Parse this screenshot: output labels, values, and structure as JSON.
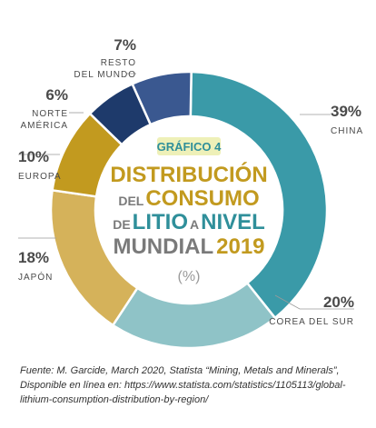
{
  "chart_data": {
    "type": "pie",
    "donut": true,
    "title_tag": "GRÁFICO 4",
    "title_lines": [
      [
        {
          "text": "DISTRIBUCIÓN",
          "tone": "gold"
        }
      ],
      [
        {
          "text": "DEL",
          "tone": "grey",
          "small": true
        },
        {
          "text": "CONSUMO",
          "tone": "gold"
        }
      ],
      [
        {
          "text": "DE",
          "tone": "grey",
          "small": true
        },
        {
          "text": "LITIO",
          "tone": "teal"
        },
        {
          "text": "A",
          "tone": "grey",
          "small": true
        },
        {
          "text": "NIVEL",
          "tone": "teal"
        }
      ],
      [
        {
          "text": "MUNDIAL",
          "tone": "grey"
        },
        {
          "text": "2019",
          "tone": "gold"
        }
      ]
    ],
    "unit": "(%)",
    "slices": [
      {
        "label": [
          "CHINA"
        ],
        "pct_label": "39%",
        "value": 39,
        "color": "#3a9aa8"
      },
      {
        "label": [
          "COREA DEL SUR"
        ],
        "pct_label": "20%",
        "value": 20,
        "color": "#8fc3c7"
      },
      {
        "label": [
          "JAPÓN"
        ],
        "pct_label": "18%",
        "value": 18,
        "color": "#d5b25a"
      },
      {
        "label": [
          "EUROPA"
        ],
        "pct_label": "10%",
        "value": 10,
        "color": "#c29a1f"
      },
      {
        "label": [
          "NORTE",
          "AMÉRICA"
        ],
        "pct_label": "6%",
        "value": 6,
        "color": "#1e3a6b"
      },
      {
        "label": [
          "RESTO",
          "DEL MUNDO"
        ],
        "pct_label": "7%",
        "value": 7,
        "color": "#3a5890"
      }
    ]
  },
  "source": "Fuente: M. Garcide, March 2020, Statista “Mining, Metals and Minerals”, Disponible en línea en: https://www.statista.com/statistics/1105113/global-lithium-consumption-distribution-by-region/"
}
